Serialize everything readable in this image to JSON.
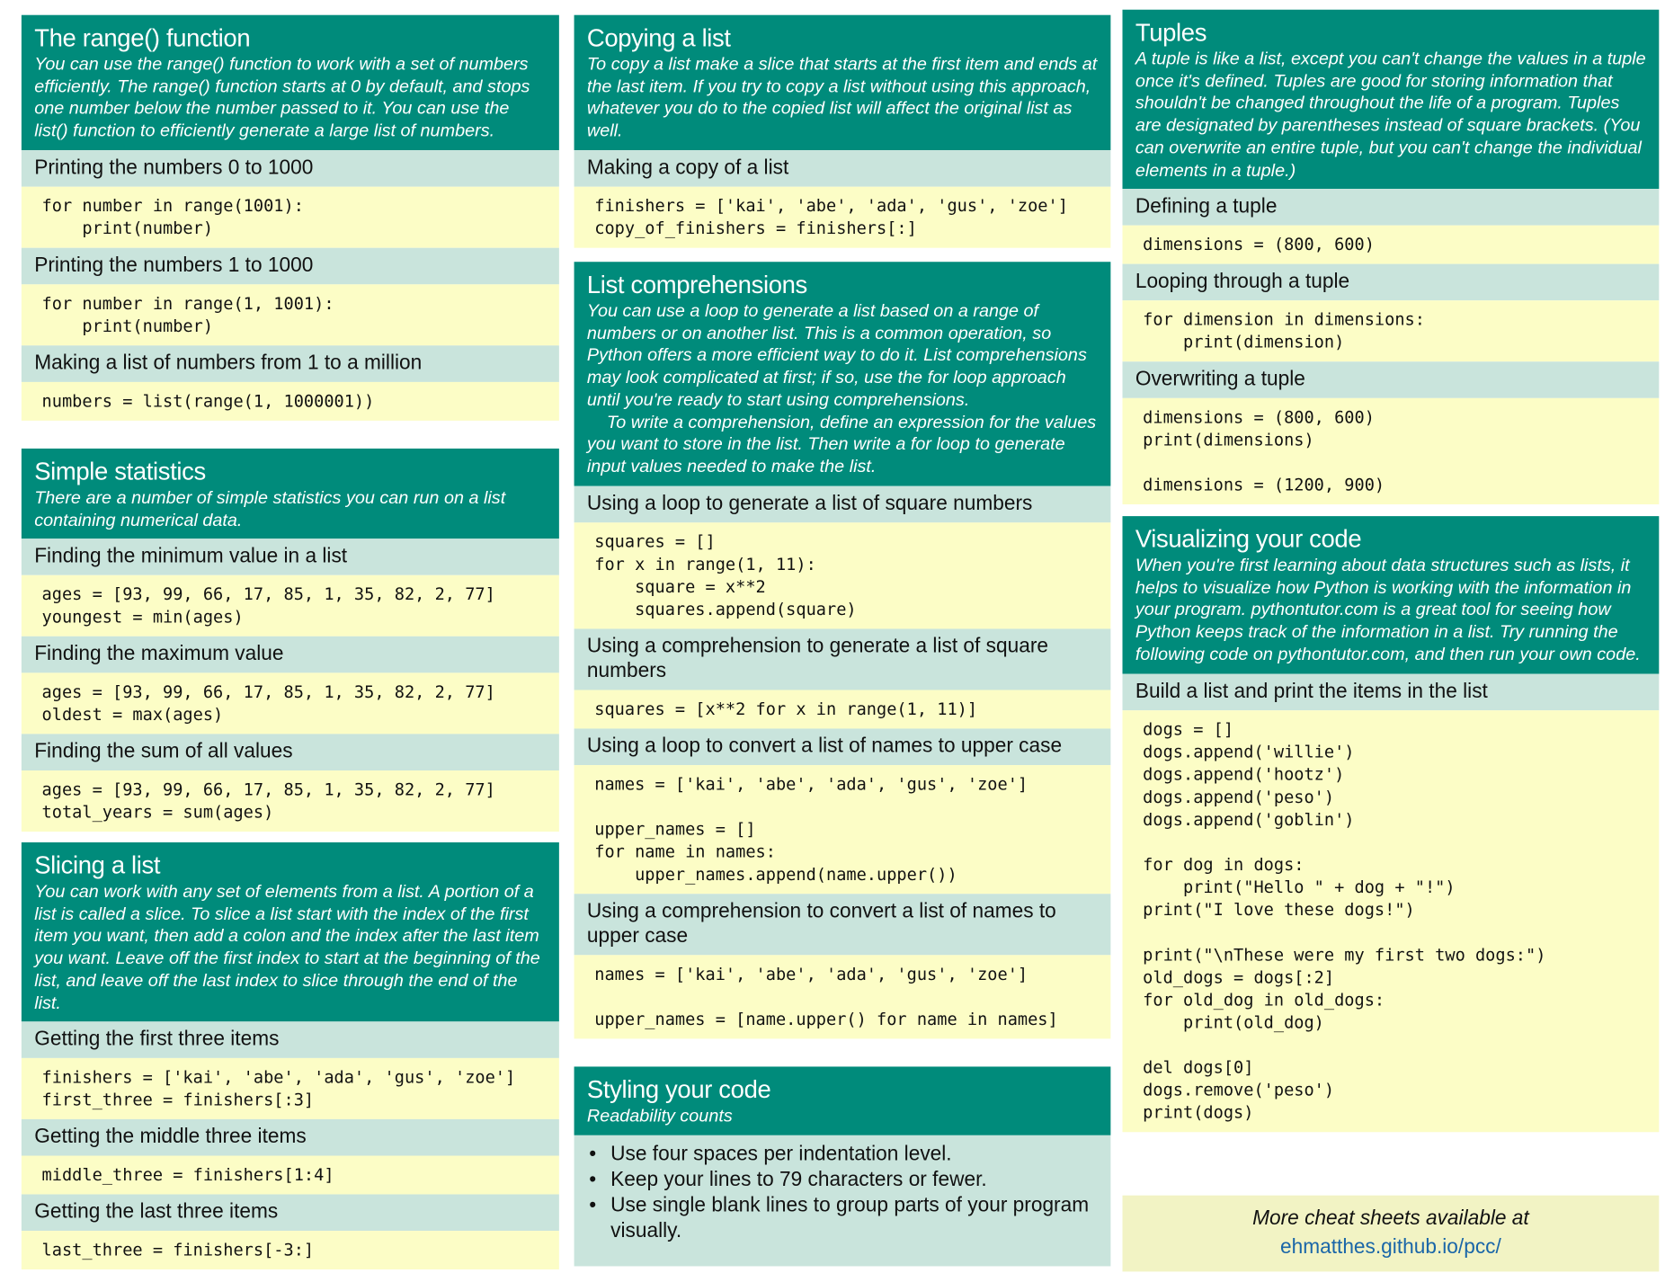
{
  "colors": {
    "header": "#008b7b",
    "subheader": "#c9e4dc",
    "code": "#fcfdc6",
    "footer": "#f2f3c4",
    "link": "#1a66a8"
  },
  "range": {
    "title": "The range() function",
    "desc": "You can use the range() function to work with a set of numbers efficiently. The range() function starts at 0 by default, and stops one number below the number passed to it. You can use the list() function to efficiently generate a large list of numbers.",
    "items": [
      {
        "heading": "Printing the numbers 0 to 1000",
        "code": "for number in range(1001):\n    print(number)"
      },
      {
        "heading": "Printing the numbers 1 to 1000",
        "code": "for number in range(1, 1001):\n    print(number)"
      },
      {
        "heading": "Making a list of numbers from 1 to a million",
        "code": "numbers = list(range(1, 1000001))"
      }
    ]
  },
  "stats": {
    "title": "Simple statistics",
    "desc": "There are a number of simple statistics you can run on a list containing numerical data.",
    "items": [
      {
        "heading": "Finding the minimum value in a list",
        "code": "ages = [93, 99, 66, 17, 85, 1, 35, 82, 2, 77]\nyoungest = min(ages)"
      },
      {
        "heading": "Finding the maximum value",
        "code": "ages = [93, 99, 66, 17, 85, 1, 35, 82, 2, 77]\noldest = max(ages)"
      },
      {
        "heading": "Finding the sum of all values",
        "code": "ages = [93, 99, 66, 17, 85, 1, 35, 82, 2, 77]\ntotal_years = sum(ages)"
      }
    ]
  },
  "slicing": {
    "title": "Slicing a list",
    "desc": "You can work with any set of elements from a list. A portion of a list is called a slice. To slice a list start with the index of the first item you want, then add a colon and the index after the last item you want. Leave off the first index to start at the beginning of the list, and leave off the last index to slice through the end of the list.",
    "items": [
      {
        "heading": "Getting the first three items",
        "code": "finishers = ['kai', 'abe', 'ada', 'gus', 'zoe']\nfirst_three = finishers[:3]"
      },
      {
        "heading": "Getting the middle three items",
        "code": "middle_three = finishers[1:4]"
      },
      {
        "heading": "Getting the last three items",
        "code": "last_three = finishers[-3:]"
      }
    ]
  },
  "copying": {
    "title": "Copying a list",
    "desc": "To copy a list make a slice that starts at the first item and ends at the last item. If you try to copy a list without using this approach, whatever you do to the copied list will affect the original list as well.",
    "items": [
      {
        "heading": "Making a copy of a list",
        "code": "finishers = ['kai', 'abe', 'ada', 'gus', 'zoe']\ncopy_of_finishers = finishers[:]"
      }
    ]
  },
  "comprehensions": {
    "title": "List comprehensions",
    "desc": "You can use a loop to generate a list based on a range of numbers or on another list. This is a common operation, so Python offers a more efficient way to do it. List comprehensions may look complicated at first; if so, use the for loop approach until you're ready to start using comprehensions.\n    To write a comprehension, define an expression for the values you want to store in the list. Then write a for loop to generate input values needed to make the list.",
    "items": [
      {
        "heading": "Using a loop to generate a list of square numbers",
        "code": "squares = []\nfor x in range(1, 11):\n    square = x**2\n    squares.append(square)"
      },
      {
        "heading": "Using a comprehension to generate a list of square numbers",
        "code": "squares = [x**2 for x in range(1, 11)]"
      },
      {
        "heading": "Using a loop to convert a list of names to upper case",
        "code": "names = ['kai', 'abe', 'ada', 'gus', 'zoe']\n\nupper_names = []\nfor name in names:\n    upper_names.append(name.upper())"
      },
      {
        "heading": "Using a comprehension to convert a list of names to upper case",
        "code": "names = ['kai', 'abe', 'ada', 'gus', 'zoe']\n\nupper_names = [name.upper() for name in names]"
      }
    ]
  },
  "styling": {
    "title": "Styling your code",
    "desc": "Readability counts",
    "bullets": [
      "Use four spaces per indentation level.",
      "Keep your lines to 79 characters or fewer.",
      "Use single blank lines to group parts of your program visually."
    ]
  },
  "tuples": {
    "title": "Tuples",
    "desc": "A tuple is like a list, except you can't change the values in a tuple once it's defined. Tuples are good for storing information that shouldn't be changed throughout the life of a program. Tuples are designated by parentheses instead of square brackets. (You can overwrite an entire tuple, but you can't change the individual elements in a tuple.)",
    "items": [
      {
        "heading": "Defining a tuple",
        "code": "dimensions = (800, 600)"
      },
      {
        "heading": "Looping through a tuple",
        "code": "for dimension in dimensions:\n    print(dimension)"
      },
      {
        "heading": "Overwriting a tuple",
        "code": "dimensions = (800, 600)\nprint(dimensions)\n\ndimensions = (1200, 900)"
      }
    ]
  },
  "visualizing": {
    "title": "Visualizing your code",
    "desc": "When you're first learning about data structures such as lists, it helps to visualize how Python is working with the information in your program. pythontutor.com is a great tool for seeing how Python keeps track of the information in a list. Try running the following code on pythontutor.com, and then run your own code.",
    "items": [
      {
        "heading": "Build a list and print the items in the list",
        "code": "dogs = []\ndogs.append('willie')\ndogs.append('hootz')\ndogs.append('peso')\ndogs.append('goblin')\n\nfor dog in dogs:\n    print(\"Hello \" + dog + \"!\")\nprint(\"I love these dogs!\")\n\nprint(\"\\nThese were my first two dogs:\")\nold_dogs = dogs[:2]\nfor old_dog in old_dogs:\n    print(old_dog)\n\ndel dogs[0]\ndogs.remove('peso')\nprint(dogs)"
      }
    ]
  },
  "footer": {
    "text": "More cheat sheets available at",
    "link": "ehmatthes.github.io/pcc/"
  }
}
